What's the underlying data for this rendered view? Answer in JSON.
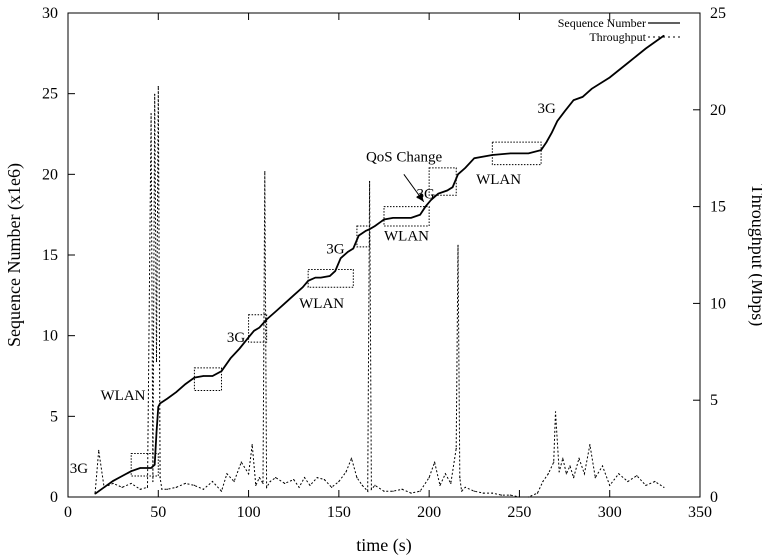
{
  "chart_data": {
    "type": "line",
    "xlabel": "time (s)",
    "ylabel": "Sequence Number (x1e6)",
    "y2label": "Throughput (Mbps)",
    "xlim": [
      0,
      350
    ],
    "ylim": [
      0,
      30
    ],
    "y2lim": [
      0,
      25
    ],
    "xticks": [
      "0",
      "50",
      "100",
      "150",
      "200",
      "250",
      "300",
      "350"
    ],
    "yticks": [
      "0",
      "5",
      "10",
      "15",
      "20",
      "25",
      "30"
    ],
    "y2ticks": [
      "0",
      "5",
      "10",
      "15",
      "20",
      "25"
    ],
    "grid": false,
    "legend": "top-right",
    "series": [
      {
        "name": "Sequence Number",
        "axis": "left",
        "style": "solid",
        "x": [
          15,
          20,
          25,
          30,
          35,
          40,
          46,
          48,
          49,
          50,
          51,
          55,
          60,
          65,
          70,
          75,
          80,
          85,
          90,
          95,
          100,
          103,
          106,
          110,
          115,
          120,
          125,
          130,
          133,
          137,
          140,
          145,
          148,
          151,
          155,
          158,
          161,
          165,
          167,
          170,
          175,
          180,
          185,
          190,
          195,
          198,
          201,
          205,
          210,
          213,
          216,
          220,
          225,
          235,
          245,
          255,
          262,
          265,
          268,
          271,
          275,
          280,
          285,
          290,
          300,
          310,
          320,
          330
        ],
        "y": [
          0.2,
          0.6,
          1.0,
          1.3,
          1.6,
          1.8,
          1.8,
          2.0,
          4.0,
          5.6,
          5.8,
          6.1,
          6.5,
          7.0,
          7.4,
          7.5,
          7.5,
          7.8,
          8.6,
          9.2,
          9.9,
          10.3,
          10.5,
          11.0,
          11.5,
          12.0,
          12.5,
          13.0,
          13.4,
          13.6,
          13.6,
          13.7,
          14.0,
          14.8,
          15.2,
          15.4,
          16.2,
          16.5,
          16.6,
          16.8,
          17.2,
          17.3,
          17.3,
          17.3,
          17.5,
          18.0,
          18.4,
          18.8,
          19.0,
          19.2,
          20.0,
          20.4,
          21.0,
          21.2,
          21.3,
          21.3,
          21.5,
          22.0,
          22.6,
          23.3,
          23.9,
          24.6,
          24.8,
          25.3,
          26.0,
          26.9,
          27.8,
          28.6
        ]
      },
      {
        "name": "Throughput",
        "axis": "right",
        "style": "dotted",
        "x": [
          15,
          17,
          20,
          25,
          30,
          35,
          40,
          44,
          46,
          47,
          48,
          49,
          50,
          51,
          52,
          55,
          60,
          65,
          70,
          75,
          80,
          85,
          88,
          92,
          96,
          100,
          102,
          104,
          106,
          108,
          109,
          110,
          112,
          115,
          120,
          125,
          128,
          131,
          134,
          138,
          142,
          146,
          150,
          154,
          157,
          160,
          163,
          166,
          167,
          168,
          170,
          175,
          180,
          185,
          190,
          195,
          200,
          203,
          206,
          209,
          212,
          215,
          216,
          217,
          218,
          220,
          225,
          230,
          235,
          240,
          245,
          250,
          255,
          260,
          263,
          266,
          269,
          270,
          272,
          274,
          276,
          278,
          280,
          283,
          286,
          289,
          292,
          296,
          300,
          305,
          310,
          315,
          320,
          325,
          330
        ],
        "y": [
          0.2,
          2.4,
          0.5,
          0.7,
          0.5,
          0.7,
          0.4,
          0.5,
          19.8,
          0.8,
          20.8,
          7.0,
          21.2,
          1.0,
          0.4,
          0.4,
          0.5,
          0.7,
          0.6,
          0.4,
          0.8,
          0.3,
          1.2,
          0.8,
          1.8,
          1.2,
          2.7,
          0.6,
          1.0,
          0.7,
          16.8,
          0.5,
          0.8,
          1.0,
          0.7,
          0.9,
          0.5,
          1.0,
          0.6,
          1.0,
          0.9,
          0.5,
          0.8,
          1.3,
          2.0,
          1.0,
          0.6,
          0.3,
          16.3,
          0.4,
          0.6,
          0.3,
          0.3,
          0.4,
          0.2,
          0.3,
          1.0,
          1.8,
          0.6,
          1.2,
          0.7,
          2.5,
          13.0,
          1.0,
          0.3,
          0.5,
          0.3,
          0.2,
          0.2,
          0.1,
          0.1,
          0.0,
          0.0,
          0.2,
          0.8,
          1.2,
          1.8,
          4.4,
          1.3,
          2.0,
          1.2,
          1.6,
          1.0,
          2.0,
          1.2,
          2.7,
          1.0,
          1.6,
          0.6,
          1.2,
          0.8,
          1.1,
          0.6,
          0.8,
          0.5
        ]
      }
    ],
    "boxes": [
      {
        "x0": 35,
        "x1": 50,
        "y0": 1.3,
        "y1": 2.7
      },
      {
        "x0": 70,
        "x1": 85,
        "y0": 6.6,
        "y1": 8.0
      },
      {
        "x0": 100,
        "x1": 110,
        "y0": 9.6,
        "y1": 11.3
      },
      {
        "x0": 133,
        "x1": 158,
        "y0": 13.0,
        "y1": 14.1
      },
      {
        "x0": 160,
        "x1": 167,
        "y0": 15.5,
        "y1": 16.8
      },
      {
        "x0": 175,
        "x1": 200,
        "y0": 16.8,
        "y1": 18.0
      },
      {
        "x0": 200,
        "x1": 215,
        "y0": 18.7,
        "y1": 20.4
      },
      {
        "x0": 235,
        "x1": 262,
        "y0": 20.6,
        "y1": 22.0
      }
    ],
    "annotations": [
      {
        "text": "3G",
        "x": 1,
        "y": 1.5
      },
      {
        "text": "WLAN",
        "x": 18,
        "y": 6.0
      },
      {
        "text": "3G",
        "x": 88,
        "y": 9.6
      },
      {
        "text": "WLAN",
        "x": 128,
        "y": 11.7
      },
      {
        "text": "3G",
        "x": 143,
        "y": 15.1
      },
      {
        "text": "WLAN",
        "x": 175,
        "y": 15.9
      },
      {
        "text": "3G",
        "x": 193,
        "y": 18.5
      },
      {
        "text": "WLAN",
        "x": 226,
        "y": 19.4
      },
      {
        "text": "3G",
        "x": 260,
        "y": 23.8
      },
      {
        "text": "QoS Change",
        "x": 165,
        "y": 20.8
      }
    ],
    "arrow": {
      "from": [
        186,
        20.0
      ],
      "to": [
        197,
        18.3
      ]
    }
  }
}
